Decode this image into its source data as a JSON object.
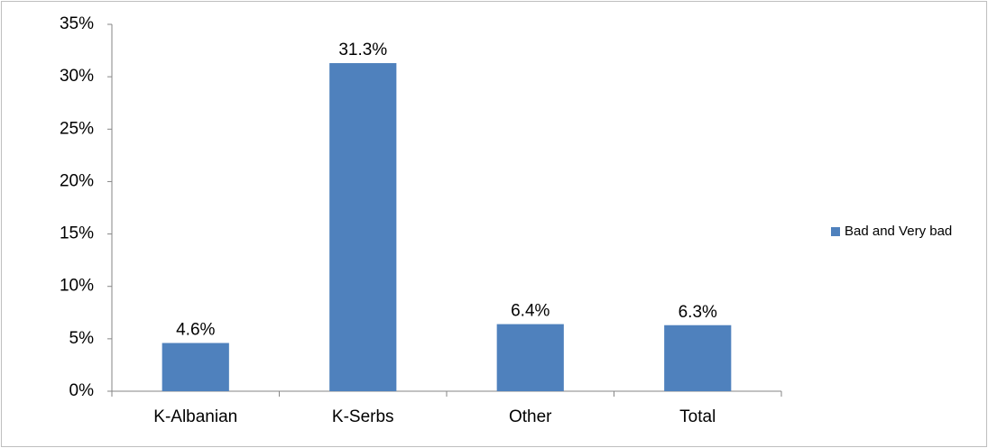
{
  "chart_data": {
    "type": "bar",
    "categories": [
      "K-Albanian",
      "K-Serbs",
      "Other",
      "Total"
    ],
    "series": [
      {
        "name": "Bad and Very bad",
        "color": "#4f81bd",
        "values": [
          4.6,
          31.3,
          6.4,
          6.3
        ],
        "value_labels": [
          "4.6%",
          "31.3%",
          "6.4%",
          "6.3%"
        ]
      }
    ],
    "ylim": [
      0,
      35
    ],
    "yticks": [
      {
        "value": 0,
        "label": "0%"
      },
      {
        "value": 5,
        "label": "5%"
      },
      {
        "value": 10,
        "label": "10%"
      },
      {
        "value": 15,
        "label": "15%"
      },
      {
        "value": 20,
        "label": "20%"
      },
      {
        "value": 25,
        "label": "25%"
      },
      {
        "value": 30,
        "label": "30%"
      },
      {
        "value": 35,
        "label": "35%"
      }
    ],
    "grid": false,
    "legend": "right"
  }
}
